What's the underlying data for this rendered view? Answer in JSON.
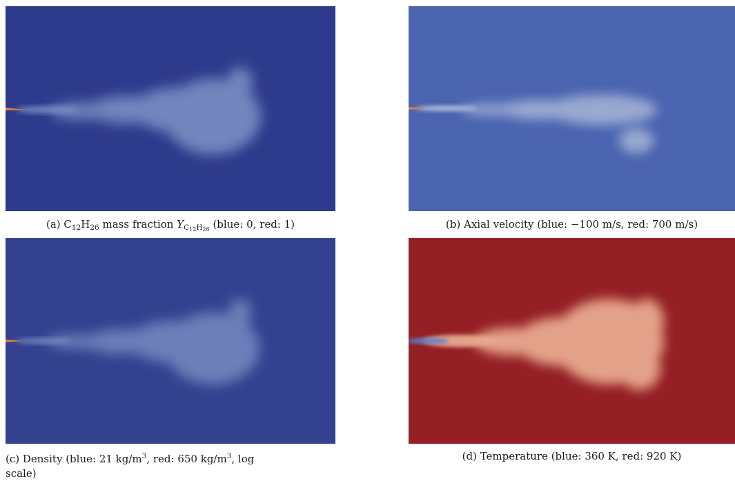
{
  "figure": {
    "panels": [
      {
        "id": "a",
        "field": "C12H26 mass fraction",
        "background": "#2e3a8c",
        "plume_color": "#7e93c6",
        "nozzle_color": "#e07a45",
        "caption": {
          "prefix": "(a) C",
          "sub1": "12",
          "mid1": "H",
          "sub2": "26",
          "mid2": " mass fraction ",
          "var": "Y",
          "var_sub": "C",
          "var_sub_a": "12",
          "var_sub_b": "H",
          "var_sub_c": "26",
          "suffix": " (blue: 0, red: 1)"
        }
      },
      {
        "id": "b",
        "field": "Axial velocity",
        "background": "#4b64b0",
        "plume_color": "#b3c1dc",
        "nozzle_color": "#e07a45",
        "caption": {
          "text": "(b) Axial velocity (blue: −100 m/s, red: 700 m/s)"
        }
      },
      {
        "id": "c",
        "field": "Density",
        "background": "#33418f",
        "plume_color": "#7c8fc4",
        "nozzle_color": "#e07a45",
        "caption": {
          "prefix": "(c) Density (blue: 21 kg/m",
          "sup1": "3",
          "mid": ", red: 650 kg/m",
          "sup2": "3",
          "suffix_line1": ", log",
          "line2": "scale)"
        }
      },
      {
        "id": "d",
        "field": "Temperature",
        "background": "#941f24",
        "plume_color": "#e8a98f",
        "nozzle_color": "#5a7fc9",
        "caption": {
          "text": "(d) Temperature (blue: 360 K, red: 920 K)"
        }
      }
    ]
  }
}
